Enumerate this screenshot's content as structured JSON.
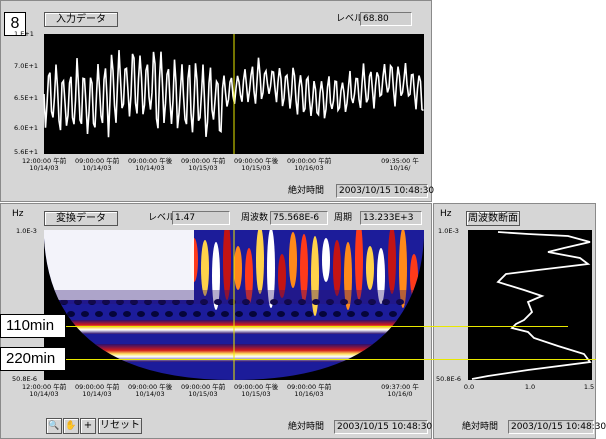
{
  "badge": "8",
  "top_panel": {
    "button_label": "入力データ",
    "level_label": "レベル",
    "level_value": "68.80",
    "y_ticks": [
      "1.E+1",
      "7.0E+1",
      "6.5E+1",
      "6.0E+1",
      "5.6E+1"
    ],
    "x_ticks": [
      {
        "time": "12:00:00 午前",
        "date": "10/14/03"
      },
      {
        "time": "09:00:00 午前",
        "date": "10/14/03"
      },
      {
        "time": "09:00:00 午後",
        "date": "10/14/03"
      },
      {
        "time": "09:00:00 午前",
        "date": "10/15/03"
      },
      {
        "time": "09:00:00 午後",
        "date": "10/15/03"
      },
      {
        "time": "09:00:00 午前",
        "date": "10/16/03"
      },
      {
        "time": "09:35:00 午",
        "date": "10/16/"
      }
    ],
    "time_label": "絶対時間",
    "time_value": "2003/10/15 10:48:30"
  },
  "wavelet_panel": {
    "hz_label": "Hz",
    "button_label": "変換データ",
    "level_label": "レベル",
    "level_value": "1.47",
    "freq_label": "周波数",
    "freq_value": "75.568E-6",
    "period_label": "周期",
    "period_value": "13.233E+3",
    "y_top": "1.0E-3",
    "y_bottom": "50.8E-6",
    "x_ticks": [
      {
        "time": "12:00:00 午前",
        "date": "10/14/03"
      },
      {
        "time": "09:00:00 午前",
        "date": "10/14/03"
      },
      {
        "time": "09:00:00 午後",
        "date": "10/14/03"
      },
      {
        "time": "09:00:00 午前",
        "date": "10/15/03"
      },
      {
        "time": "09:00:00 午後",
        "date": "10/15/03"
      },
      {
        "time": "09:00:00 午前",
        "date": "10/16/03"
      },
      {
        "time": "09:37:00 午",
        "date": "10/16/0"
      }
    ],
    "tools": {
      "zoom": "🔍",
      "hand": "✋",
      "plus": "+",
      "reset": "リセット"
    },
    "time_label": "絶対時間",
    "time_value": "2003/10/15 10:48:30"
  },
  "spectrum_panel": {
    "hz_label": "Hz",
    "button_label": "周波数断面",
    "y_top": "1.0E-3",
    "y_bottom": "50.8E-6",
    "x_ticks": [
      "0.0",
      "1.0",
      "1.5"
    ],
    "time_label": "絶対時間",
    "time_value": "2003/10/15 10:48:30"
  },
  "annotations": {
    "callout_110": "110min",
    "callout_220": "220min",
    "line_color": "#e8e800"
  }
}
